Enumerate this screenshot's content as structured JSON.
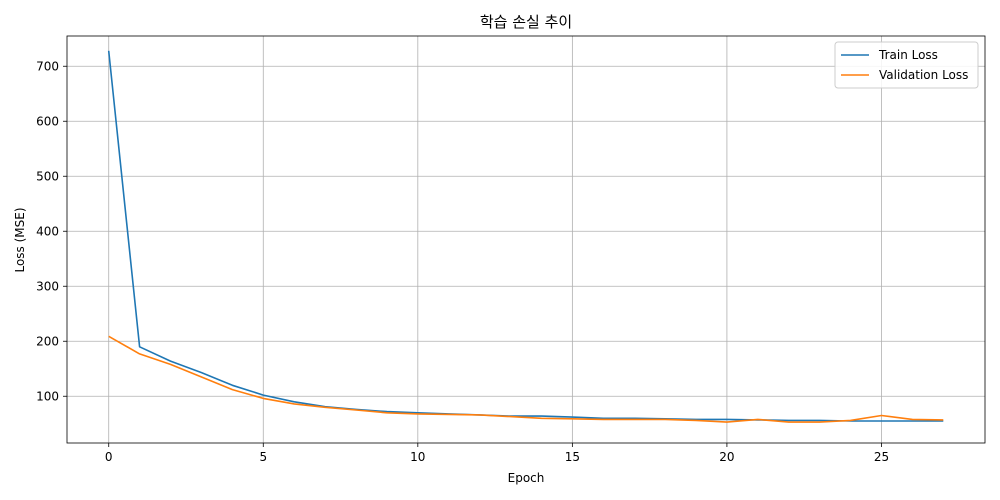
{
  "chart_data": {
    "type": "line",
    "title": "학습 손실 추이",
    "xlabel": "Epoch",
    "ylabel": "Loss (MSE)",
    "xlim": [
      -1.35,
      28.35
    ],
    "ylim": [
      15,
      755
    ],
    "xticks": [
      0,
      5,
      10,
      15,
      20,
      25
    ],
    "yticks": [
      100,
      200,
      300,
      400,
      500,
      600,
      700
    ],
    "grid": true,
    "legend_position": "top-right",
    "x": [
      0,
      1,
      2,
      3,
      4,
      5,
      6,
      7,
      8,
      9,
      10,
      11,
      12,
      13,
      14,
      15,
      16,
      17,
      18,
      19,
      20,
      21,
      22,
      23,
      24,
      25,
      26,
      27
    ],
    "series": [
      {
        "name": "Train Loss",
        "color": "#1f77b4",
        "values": [
          728,
          190,
          164,
          143,
          120,
          102,
          90,
          81,
          76,
          72,
          70,
          68,
          66,
          64,
          64,
          62,
          60,
          60,
          59,
          58,
          58,
          57,
          56,
          56,
          55,
          55,
          55,
          55
        ]
      },
      {
        "name": "Validation Loss",
        "color": "#ff7f0e",
        "values": [
          209,
          177,
          158,
          135,
          112,
          96,
          86,
          80,
          75,
          70,
          68,
          67,
          66,
          63,
          60,
          59,
          58,
          58,
          58,
          56,
          53,
          58,
          53,
          53,
          56,
          65,
          58,
          57
        ]
      }
    ]
  }
}
